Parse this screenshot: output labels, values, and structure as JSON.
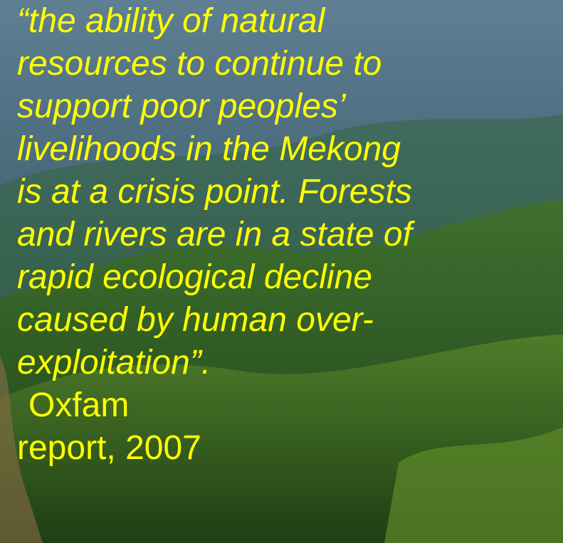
{
  "quote": {
    "lines": [
      "“the ability of natural",
      "resources to continue to",
      "support poor peoples’",
      "livelihoods in the Mekong",
      "is at a crisis point. Forests",
      "and rivers are in a state of",
      "rapid ecological decline",
      "caused by human over-",
      "exploitation”."
    ]
  },
  "source": {
    "lines": [
      "Oxfam",
      "report, 2007"
    ]
  }
}
